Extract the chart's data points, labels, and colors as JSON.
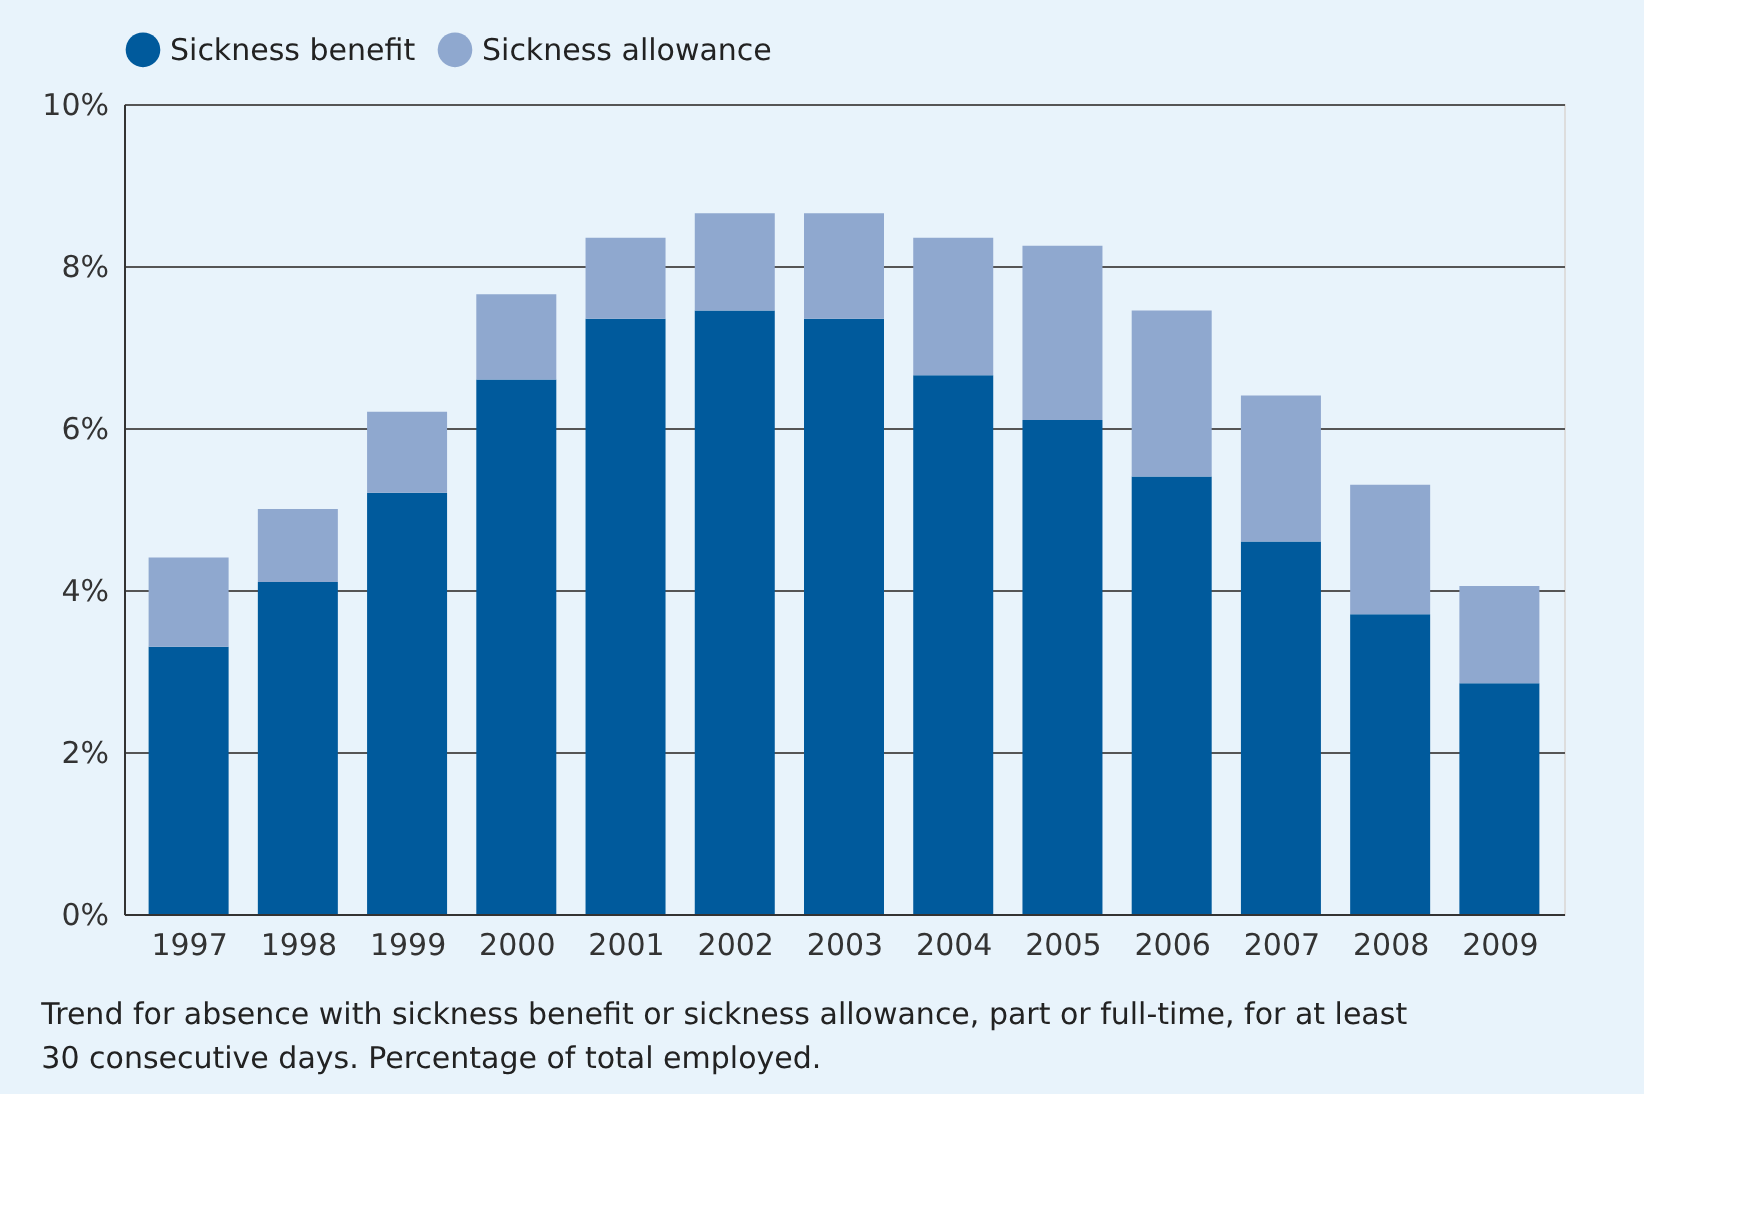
{
  "chart_data": {
    "type": "bar",
    "stacked": true,
    "categories": [
      "1997",
      "1998",
      "1999",
      "2000",
      "2001",
      "2002",
      "2003",
      "2004",
      "2005",
      "2006",
      "2007",
      "2008",
      "2009"
    ],
    "series": [
      {
        "name": "Sickness benefit",
        "color": "#005a9c",
        "values": [
          3.3,
          4.1,
          5.2,
          6.6,
          7.35,
          7.45,
          7.35,
          6.65,
          6.1,
          5.4,
          4.6,
          3.7,
          2.85
        ]
      },
      {
        "name": "Sickness allowance",
        "color": "#8fa8cf",
        "values": [
          1.1,
          0.9,
          1.0,
          1.05,
          1.0,
          1.2,
          1.3,
          1.7,
          2.15,
          2.05,
          1.8,
          1.6,
          1.2
        ]
      }
    ],
    "ylim": [
      0,
      10
    ],
    "yticks": [
      {
        "value": 0,
        "label": "0%"
      },
      {
        "value": 2,
        "label": "2%"
      },
      {
        "value": 4,
        "label": "4%"
      },
      {
        "value": 6,
        "label": "6%"
      },
      {
        "value": 8,
        "label": "8%"
      },
      {
        "value": 10,
        "label": "10%"
      }
    ],
    "grid": "y",
    "legend": "top left",
    "annotations": [
      "Trend for absence with sickness benefit or sickness allowance, part or full-time, for at least 30 consecutive days. Percentage of total employed."
    ]
  }
}
